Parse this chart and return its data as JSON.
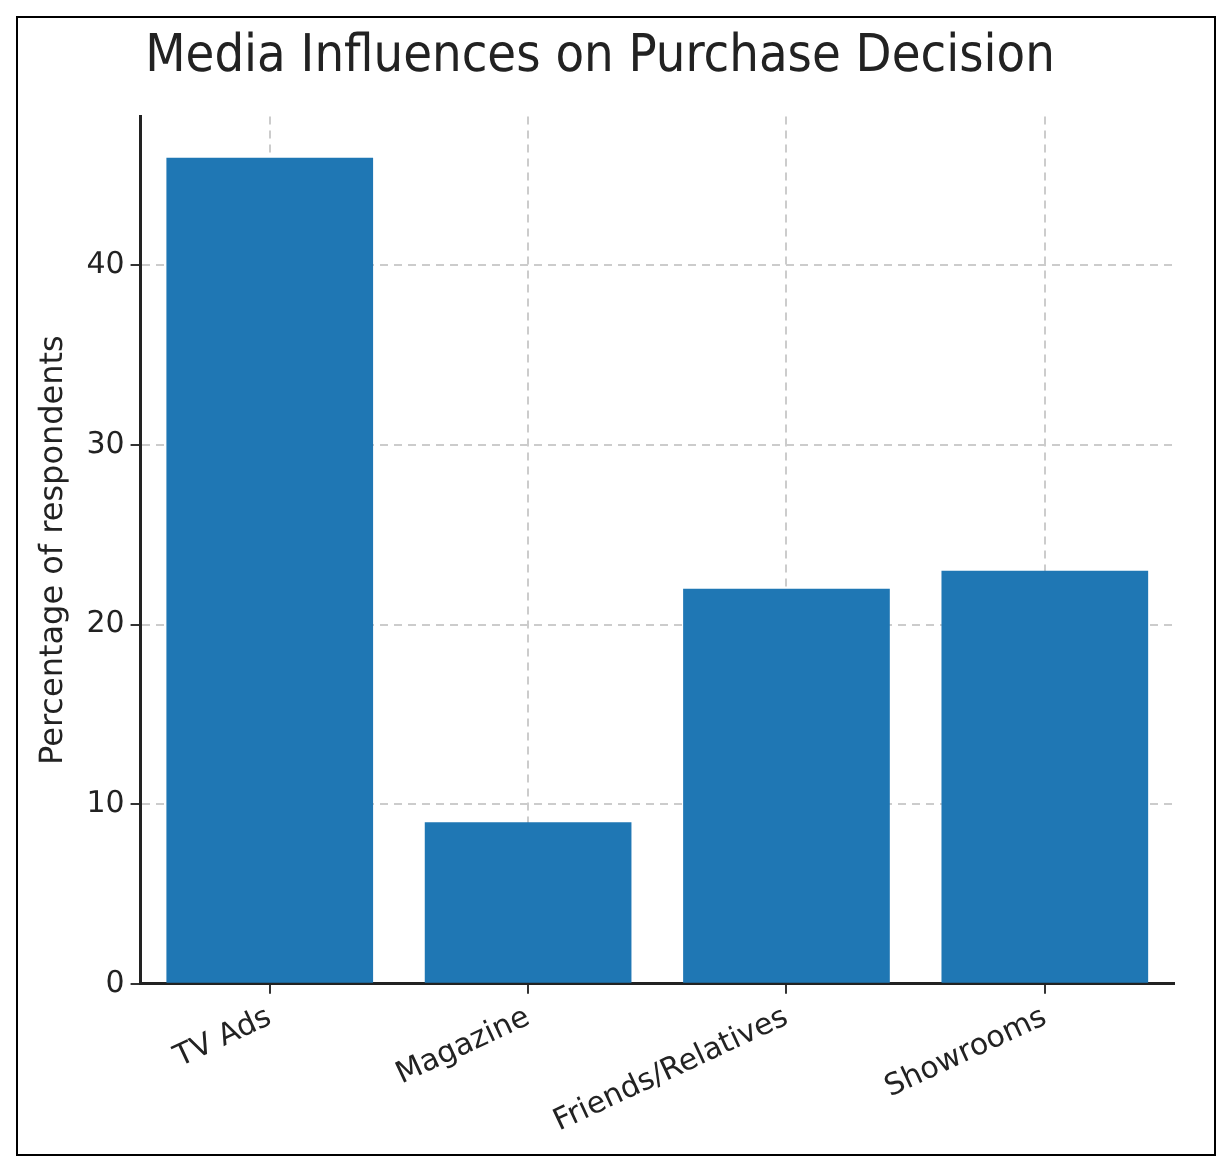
{
  "chart_data": {
    "type": "bar",
    "title": "Media Influences on Purchase Decision",
    "ylabel": "Percentage of respondents",
    "categories": [
      "TV Ads",
      "Magazine",
      "Friends/Relatives",
      "Showrooms"
    ],
    "values": [
      46,
      9,
      22,
      23
    ],
    "color": "#1f77b4",
    "ylim": [
      0,
      48.3
    ],
    "yticks": [
      0,
      10,
      20,
      30,
      40
    ],
    "grid": true
  }
}
